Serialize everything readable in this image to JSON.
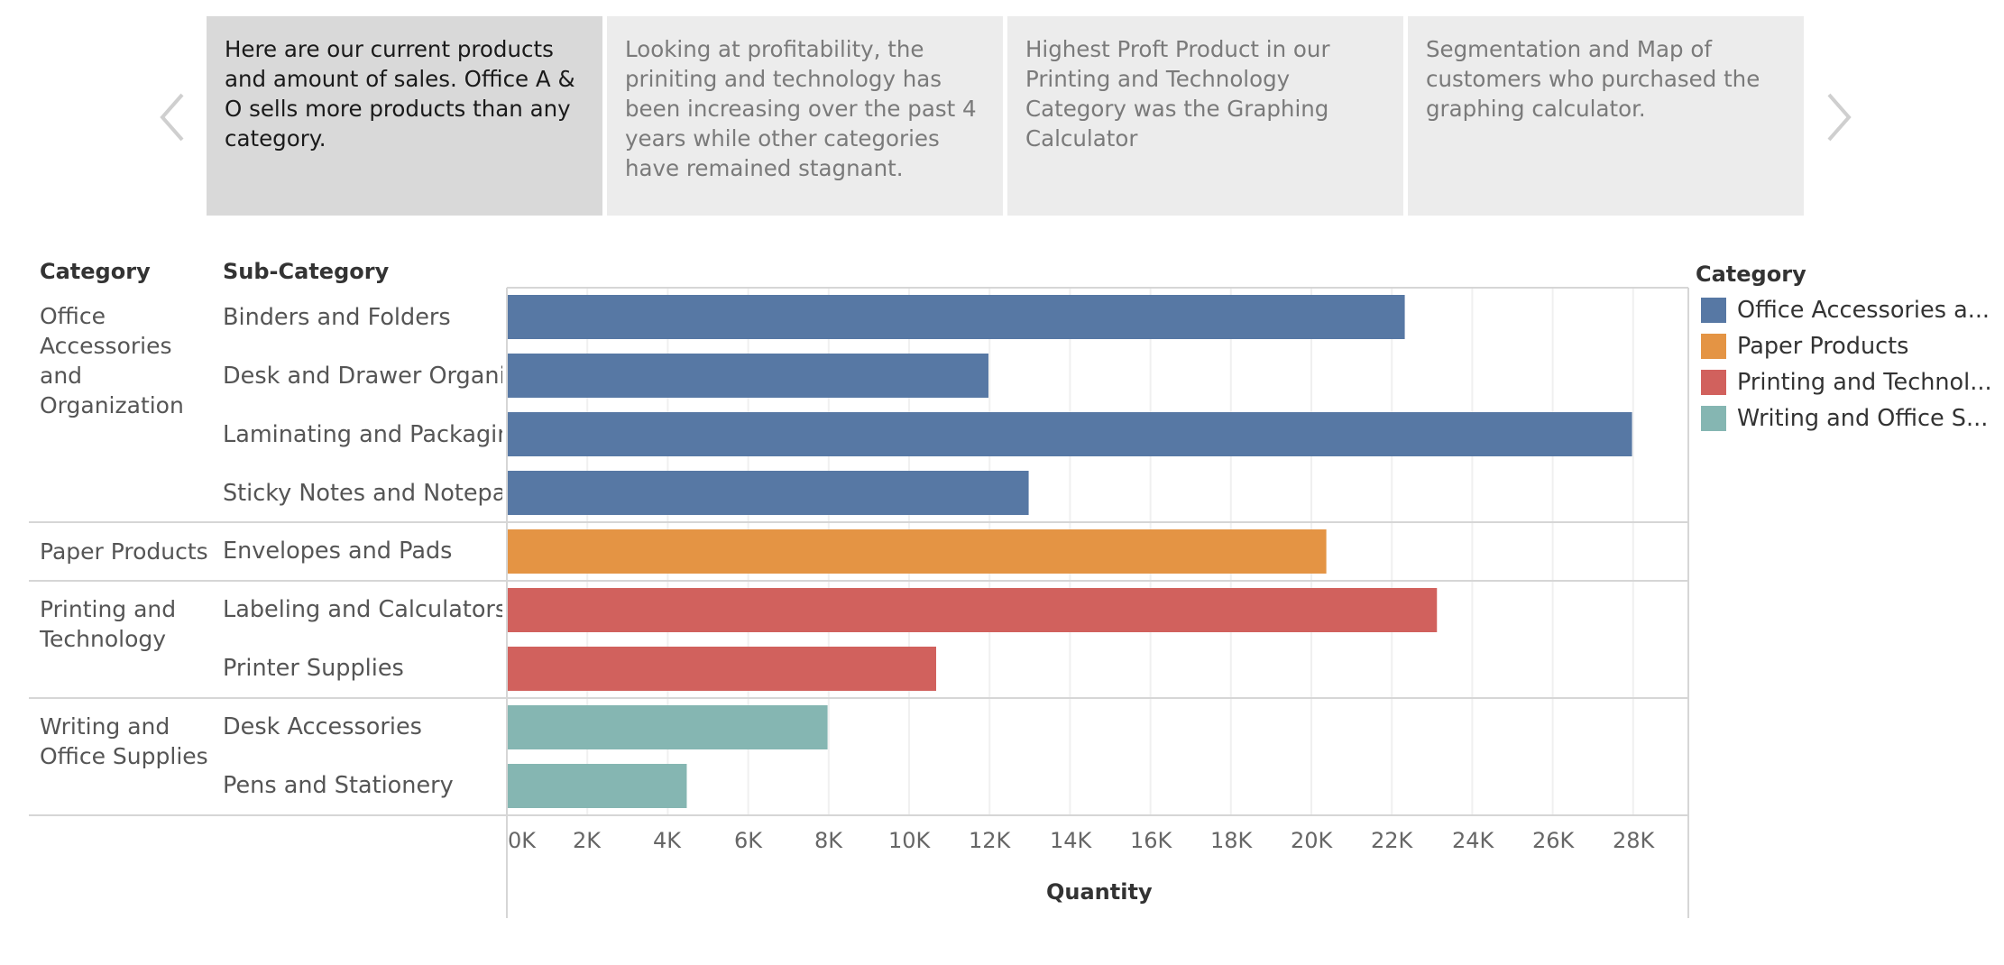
{
  "story": {
    "points": [
      {
        "text": "Here are our current products and amount of sales. Office A & O sells more products than any category.",
        "active": true
      },
      {
        "text": "Looking at profitability, the priniting and technology has been increasing over the past 4 years while other categories have remained stagnant.",
        "active": false
      },
      {
        "text": "Highest Proft Product in our Printing and Technology Category was the Graphing Calculator",
        "active": false
      },
      {
        "text": "Segmentation and Map of customers who purchased the graphing calculator.",
        "active": false
      }
    ],
    "prev_icon": "chevron-left-icon",
    "next_icon": "chevron-right-icon"
  },
  "table": {
    "category_header": "Category",
    "subcategory_header": "Sub-Category"
  },
  "legend": {
    "title": "Category",
    "items": [
      {
        "label": "Office Accessories a...",
        "color": "#5778a4"
      },
      {
        "label": "Paper Products",
        "color": "#e49444"
      },
      {
        "label": "Printing and Technol...",
        "color": "#d1615d"
      },
      {
        "label": "Writing and Office S...",
        "color": "#85b6b2"
      }
    ]
  },
  "chart_data": {
    "type": "bar",
    "orientation": "horizontal",
    "xlabel": "Quantity",
    "xlim": [
      0,
      29000
    ],
    "x_ticks": [
      "0K",
      "2K",
      "4K",
      "6K",
      "8K",
      "10K",
      "12K",
      "14K",
      "16K",
      "18K",
      "20K",
      "22K",
      "24K",
      "26K",
      "28K"
    ],
    "grid": true,
    "legend_position": "right",
    "groups": [
      {
        "category": "Office Accessories and Organization",
        "color": "#5778a4",
        "subcategories": [
          {
            "name": "Binders and Folders",
            "value": 22300
          },
          {
            "name": "Desk and Drawer Organiz..",
            "value": 11950
          },
          {
            "name": "Laminating and Packaging",
            "value": 27950
          },
          {
            "name": "Sticky Notes and Notepads",
            "value": 12950
          }
        ]
      },
      {
        "category": "Paper Products",
        "color": "#e49444",
        "subcategories": [
          {
            "name": "Envelopes and Pads",
            "value": 20350
          }
        ]
      },
      {
        "category": "Printing and Technology",
        "color": "#d1615d",
        "subcategories": [
          {
            "name": "Labeling and Calculators",
            "value": 23100
          },
          {
            "name": "Printer Supplies",
            "value": 10650
          }
        ]
      },
      {
        "category": "Writing and Office Supplies",
        "color": "#85b6b2",
        "subcategories": [
          {
            "name": "Desk Accessories",
            "value": 7950
          },
          {
            "name": "Pens and Stationery",
            "value": 4450
          }
        ]
      }
    ]
  }
}
